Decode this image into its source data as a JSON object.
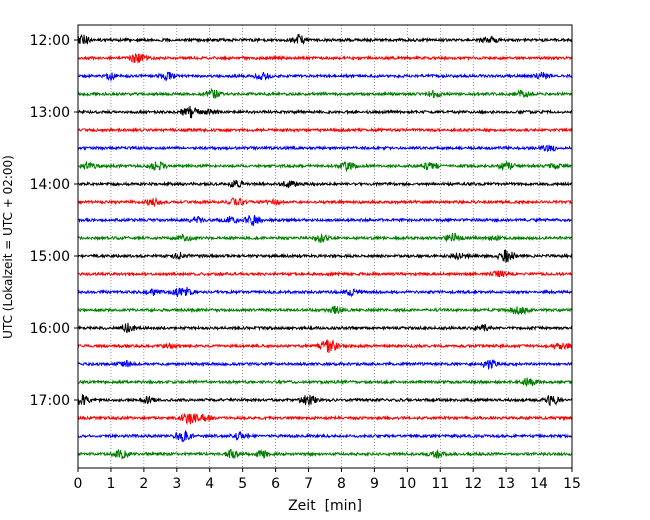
{
  "chart_data": {
    "type": "line",
    "title": "",
    "xlabel": "Zeit  [min]",
    "ylabel": "UTC (Lokalzeit = UTC + 02:00)",
    "xlim": [
      0,
      15
    ],
    "x_ticks": [
      "0",
      "1",
      "2",
      "3",
      "4",
      "5",
      "6",
      "7",
      "8",
      "9",
      "10",
      "11",
      "12",
      "13",
      "14",
      "15"
    ],
    "y_ticks": [
      "12:00",
      "13:00",
      "14:00",
      "15:00",
      "16:00",
      "17:00"
    ],
    "grid": "vertical dotted",
    "trace_interval_min": 15,
    "colors": [
      "#000000",
      "#ff0000",
      "#0000ff",
      "#008000"
    ],
    "traces": [
      {
        "start": "12:00",
        "color": "#000000",
        "events": [
          [
            0.1,
            6
          ],
          [
            6.7,
            5
          ],
          [
            12.5,
            3
          ]
        ]
      },
      {
        "start": "12:15",
        "color": "#ff0000",
        "events": [
          [
            1.8,
            5
          ]
        ]
      },
      {
        "start": "12:30",
        "color": "#0000ff",
        "events": [
          [
            1.0,
            3
          ],
          [
            2.7,
            3
          ],
          [
            5.6,
            3
          ],
          [
            14.1,
            3
          ]
        ]
      },
      {
        "start": "12:45",
        "color": "#008000",
        "events": [
          [
            4.1,
            4
          ],
          [
            10.8,
            3
          ],
          [
            13.5,
            3
          ]
        ]
      },
      {
        "start": "13:00",
        "color": "#000000",
        "events": [
          [
            3.4,
            6
          ],
          [
            4.0,
            2
          ]
        ]
      },
      {
        "start": "13:15",
        "color": "#ff0000",
        "events": []
      },
      {
        "start": "13:30",
        "color": "#0000ff",
        "events": [
          [
            14.3,
            3
          ]
        ]
      },
      {
        "start": "13:45",
        "color": "#008000",
        "events": [
          [
            0.3,
            3
          ],
          [
            2.4,
            4
          ],
          [
            8.2,
            4
          ],
          [
            10.7,
            4
          ],
          [
            13.0,
            4
          ],
          [
            14.5,
            2
          ]
        ]
      },
      {
        "start": "14:00",
        "color": "#000000",
        "events": [
          [
            4.8,
            3
          ],
          [
            6.4,
            3
          ]
        ]
      },
      {
        "start": "14:15",
        "color": "#ff0000",
        "events": [
          [
            2.3,
            3
          ],
          [
            4.8,
            4
          ],
          [
            6.0,
            2
          ]
        ]
      },
      {
        "start": "14:30",
        "color": "#0000ff",
        "events": [
          [
            3.6,
            3
          ],
          [
            4.6,
            3
          ],
          [
            5.3,
            5
          ]
        ]
      },
      {
        "start": "14:45",
        "color": "#008000",
        "events": [
          [
            3.2,
            3
          ],
          [
            7.4,
            4
          ],
          [
            11.4,
            4
          ],
          [
            12.6,
            2
          ]
        ]
      },
      {
        "start": "15:00",
        "color": "#000000",
        "events": [
          [
            3.1,
            3
          ],
          [
            11.6,
            3
          ],
          [
            13.0,
            6
          ]
        ]
      },
      {
        "start": "15:15",
        "color": "#ff0000",
        "events": [
          [
            12.8,
            3
          ]
        ]
      },
      {
        "start": "15:30",
        "color": "#0000ff",
        "events": [
          [
            2.3,
            3
          ],
          [
            3.1,
            4
          ],
          [
            3.3,
            4
          ],
          [
            8.3,
            3
          ]
        ]
      },
      {
        "start": "15:45",
        "color": "#008000",
        "events": [
          [
            7.8,
            3
          ],
          [
            13.4,
            6
          ]
        ]
      },
      {
        "start": "16:00",
        "color": "#000000",
        "events": [
          [
            1.5,
            4
          ],
          [
            12.3,
            3
          ]
        ]
      },
      {
        "start": "16:15",
        "color": "#ff0000",
        "events": [
          [
            2.8,
            2
          ],
          [
            7.6,
            7
          ],
          [
            14.7,
            3
          ]
        ]
      },
      {
        "start": "16:30",
        "color": "#0000ff",
        "events": [
          [
            1.4,
            3
          ],
          [
            12.5,
            4
          ]
        ]
      },
      {
        "start": "16:45",
        "color": "#008000",
        "events": [
          [
            13.7,
            4
          ]
        ]
      },
      {
        "start": "17:00",
        "color": "#000000",
        "events": [
          [
            0.1,
            5
          ],
          [
            2.1,
            3
          ],
          [
            7.0,
            5
          ],
          [
            14.4,
            5
          ]
        ]
      },
      {
        "start": "17:15",
        "color": "#ff0000",
        "events": [
          [
            3.4,
            6
          ],
          [
            3.8,
            3
          ]
        ]
      },
      {
        "start": "17:30",
        "color": "#0000ff",
        "events": [
          [
            3.2,
            5
          ],
          [
            4.9,
            3
          ]
        ]
      },
      {
        "start": "17:45",
        "color": "#008000",
        "events": [
          [
            1.3,
            4
          ],
          [
            4.7,
            4
          ],
          [
            5.6,
            3
          ],
          [
            10.9,
            3
          ]
        ]
      }
    ]
  }
}
